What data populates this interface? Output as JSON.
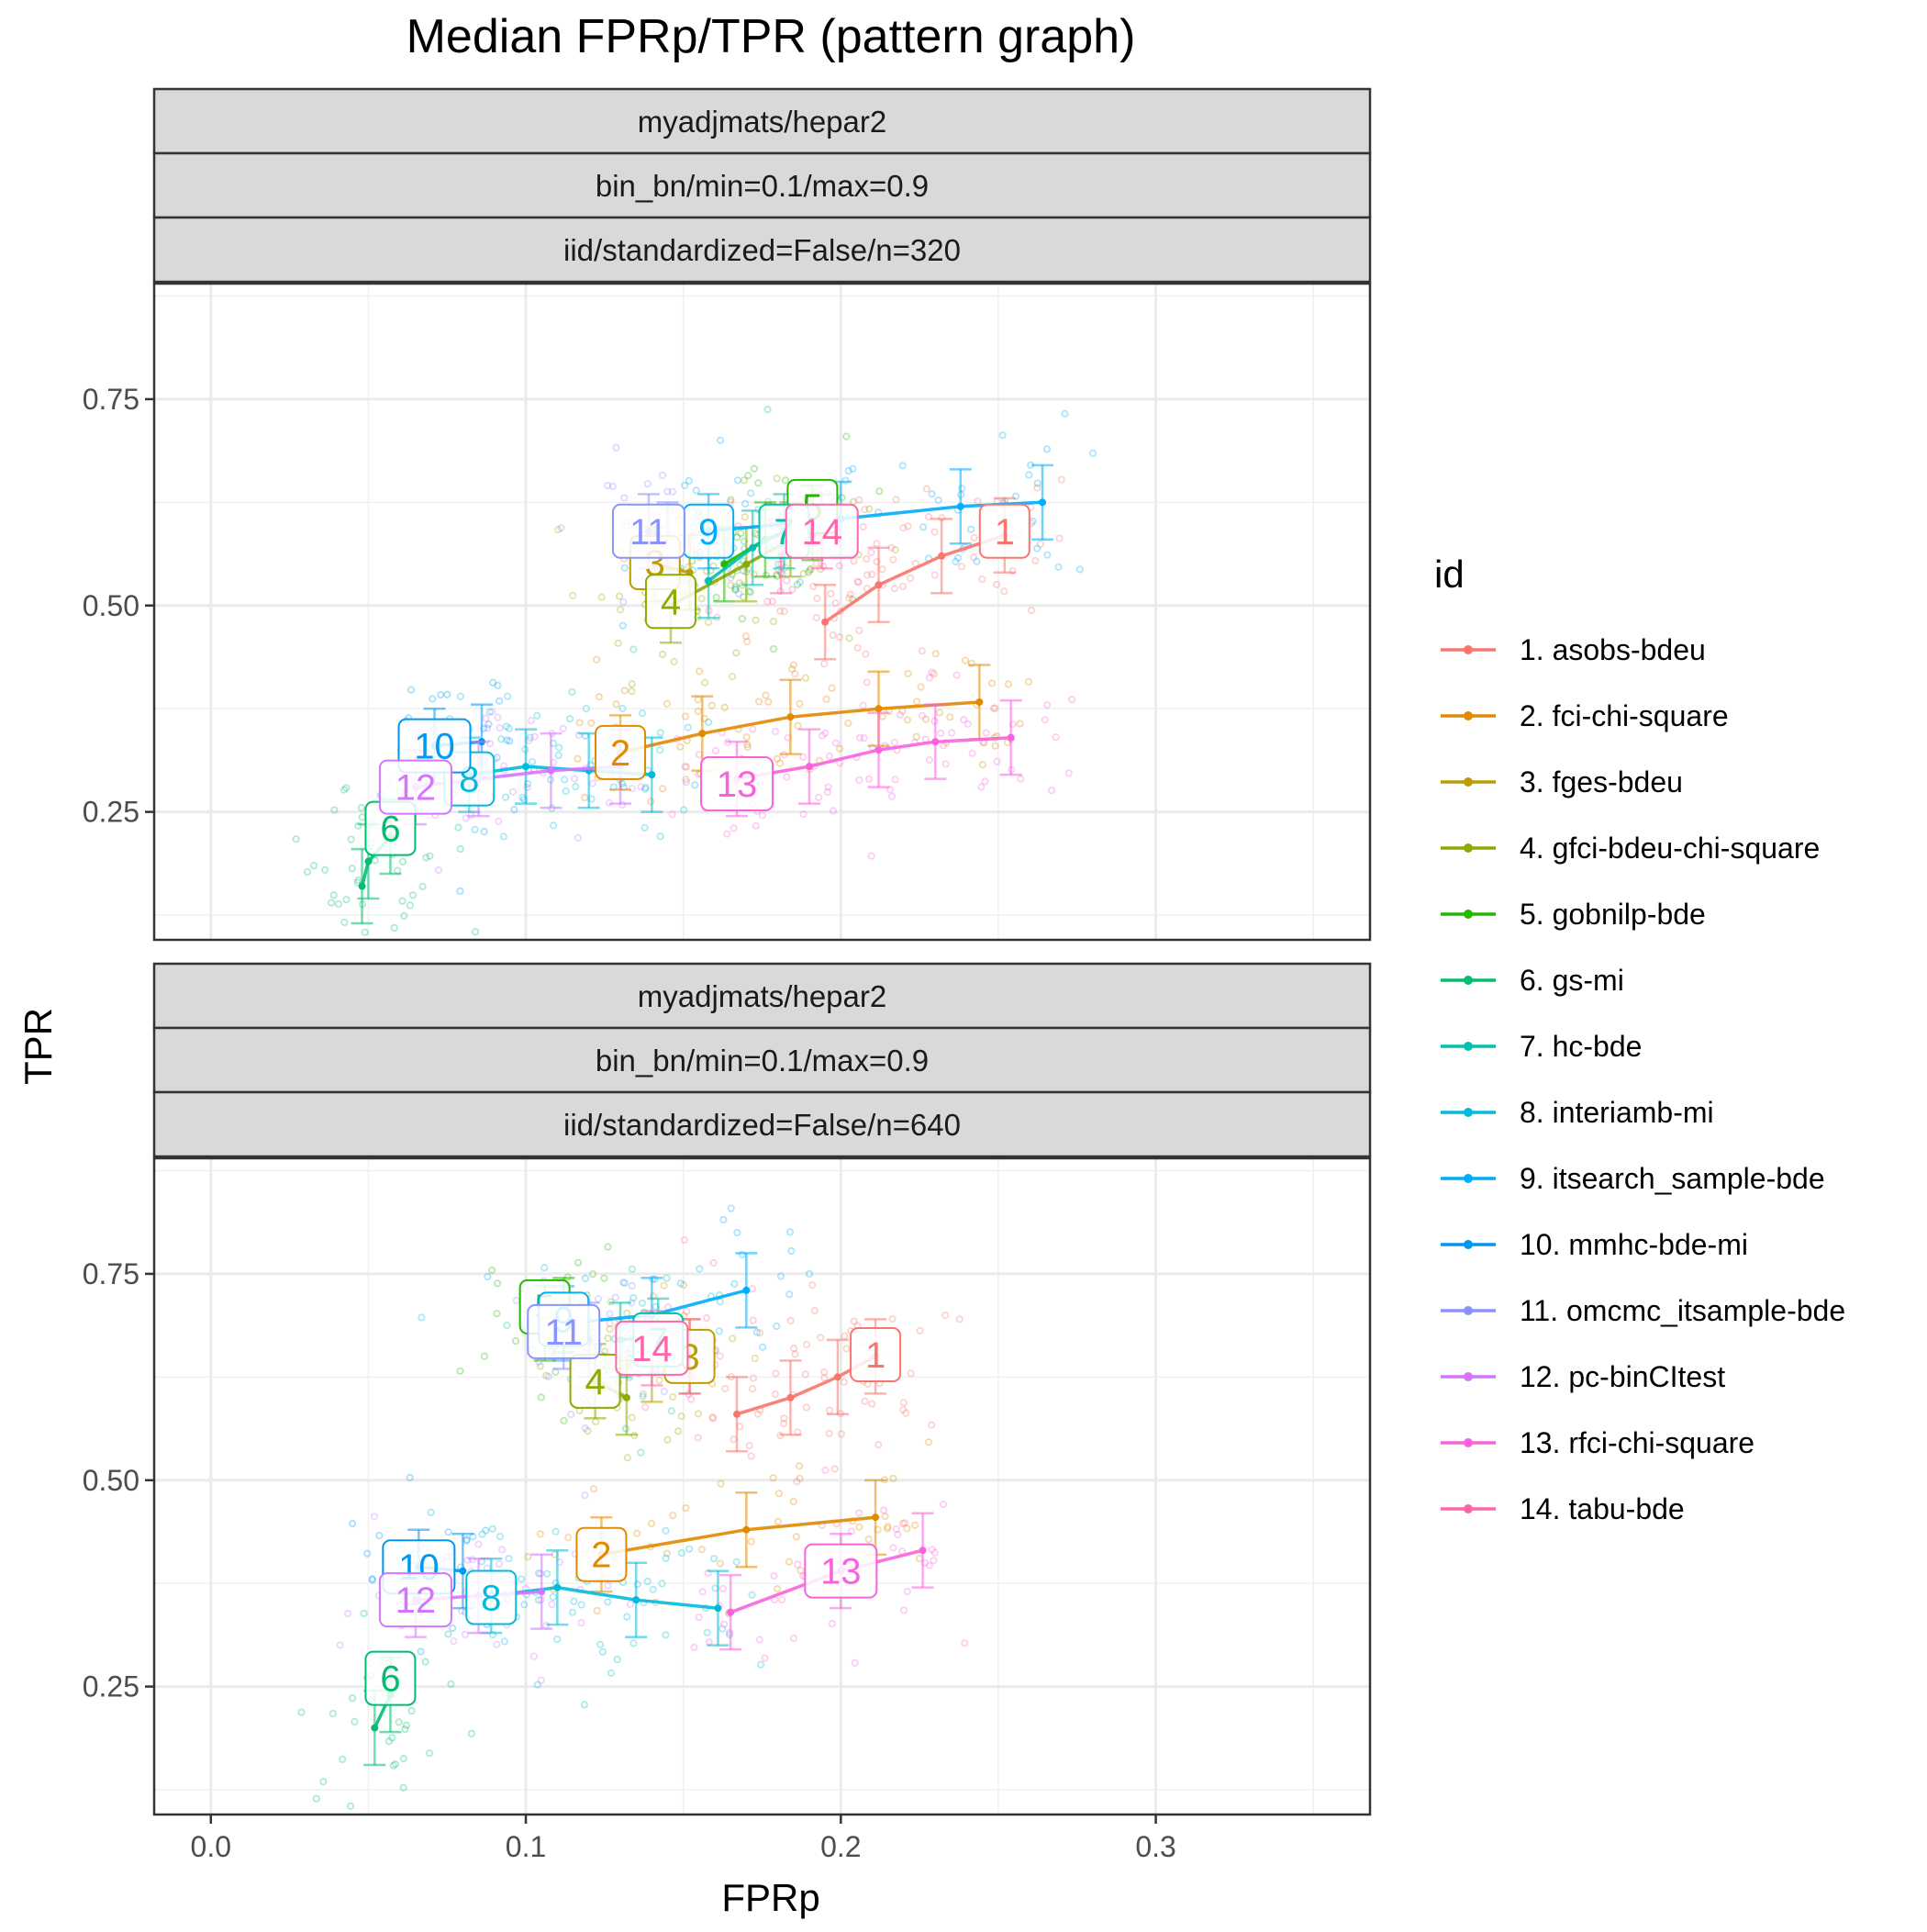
{
  "chart_data": {
    "type": "scatter",
    "title": "Median FPRp/TPR (pattern graph)",
    "xlabel": "FPRp",
    "ylabel": "TPR",
    "xlim": [
      -0.018,
      0.368
    ],
    "ylim": [
      0.095,
      0.89
    ],
    "x_ticks": [
      0.0,
      0.1,
      0.2,
      0.3
    ],
    "x_tick_labels": [
      "0.0",
      "0.1",
      "0.2",
      "0.3"
    ],
    "y_ticks": [
      0.25,
      0.5,
      0.75
    ],
    "y_tick_labels": [
      "0.25",
      "0.50",
      "0.75"
    ],
    "grid": true,
    "legend": {
      "title": "id",
      "position": "right",
      "entries": [
        {
          "id": 1,
          "label": "1. asobs-bdeu",
          "color": "#F8766D"
        },
        {
          "id": 2,
          "label": "2. fci-chi-square",
          "color": "#E18A00"
        },
        {
          "id": 3,
          "label": "3. fges-bdeu",
          "color": "#BE9C00"
        },
        {
          "id": 4,
          "label": "4. gfci-bdeu-chi-square",
          "color": "#8CAB00"
        },
        {
          "id": 5,
          "label": "5. gobnilp-bde",
          "color": "#24B700"
        },
        {
          "id": 6,
          "label": "6. gs-mi",
          "color": "#00BE70"
        },
        {
          "id": 7,
          "label": "7. hc-bde",
          "color": "#00C1AB"
        },
        {
          "id": 8,
          "label": "8. interiamb-mi",
          "color": "#00BBDA"
        },
        {
          "id": 9,
          "label": "9. itsearch_sample-bde",
          "color": "#00ACFC"
        },
        {
          "id": 10,
          "label": "10. mmhc-bde-mi",
          "color": "#0098F2"
        },
        {
          "id": 11,
          "label": "11. omcmc_itsample-bde",
          "color": "#8B93FF"
        },
        {
          "id": 12,
          "label": "12. pc-binCItest",
          "color": "#D575FE"
        },
        {
          "id": 13,
          "label": "13. rfci-chi-square",
          "color": "#F962DD"
        },
        {
          "id": 14,
          "label": "14. tabu-bde",
          "color": "#FF65AC"
        }
      ]
    },
    "panels": [
      {
        "strips": [
          "myadjmats/hepar2",
          "bin_bn/min=0.1/max=0.9",
          "iid/standardized=False/n=320"
        ],
        "series": [
          {
            "id": 1,
            "label_at": [
              0.252,
              0.59
            ],
            "points": [
              [
                0.195,
                0.48
              ],
              [
                0.212,
                0.525
              ],
              [
                0.232,
                0.56
              ],
              [
                0.252,
                0.585
              ]
            ]
          },
          {
            "id": 2,
            "label_at": [
              0.13,
              0.322
            ],
            "points": [
              [
                0.13,
                0.322
              ],
              [
                0.156,
                0.345
              ],
              [
                0.184,
                0.365
              ],
              [
                0.212,
                0.375
              ],
              [
                0.244,
                0.383
              ]
            ]
          },
          {
            "id": 3,
            "label_at": [
              0.141,
              0.552
            ],
            "points": [
              [
                0.141,
                0.55
              ],
              [
                0.152,
                0.54
              ]
            ]
          },
          {
            "id": 4,
            "label_at": [
              0.146,
              0.505
            ],
            "points": [
              [
                0.146,
                0.5
              ],
              [
                0.17,
                0.55
              ],
              [
                0.184,
                0.58
              ]
            ]
          },
          {
            "id": 5,
            "label_at": [
              0.191,
              0.62
            ],
            "points": [
              [
                0.163,
                0.55
              ],
              [
                0.176,
                0.58
              ],
              [
                0.191,
                0.6
              ]
            ]
          },
          {
            "id": 6,
            "label_at": [
              0.057,
              0.23
            ],
            "points": [
              [
                0.048,
                0.16
              ],
              [
                0.05,
                0.19
              ],
              [
                0.057,
                0.22
              ]
            ]
          },
          {
            "id": 7,
            "label_at": [
              0.182,
              0.59
            ],
            "points": [
              [
                0.158,
                0.53
              ],
              [
                0.172,
                0.57
              ],
              [
                0.182,
                0.59
              ]
            ]
          },
          {
            "id": 8,
            "label_at": [
              0.082,
              0.29
            ],
            "points": [
              [
                0.082,
                0.295
              ],
              [
                0.1,
                0.305
              ],
              [
                0.12,
                0.3
              ],
              [
                0.14,
                0.295
              ]
            ]
          },
          {
            "id": 9,
            "label_at": [
              0.158,
              0.59
            ],
            "points": [
              [
                0.158,
                0.59
              ],
              [
                0.2,
                0.605
              ],
              [
                0.238,
                0.62
              ],
              [
                0.264,
                0.625
              ]
            ]
          },
          {
            "id": 10,
            "label_at": [
              0.071,
              0.33
            ],
            "points": [
              [
                0.071,
                0.33
              ],
              [
                0.086,
                0.335
              ]
            ]
          },
          {
            "id": 11,
            "label_at": [
              0.139,
              0.59
            ],
            "points": [
              [
                0.139,
                0.59
              ],
              [
                0.145,
                0.58
              ]
            ]
          },
          {
            "id": 12,
            "label_at": [
              0.065,
              0.28
            ],
            "points": [
              [
                0.065,
                0.28
              ],
              [
                0.085,
                0.29
              ],
              [
                0.108,
                0.3
              ],
              [
                0.13,
                0.305
              ]
            ]
          },
          {
            "id": 13,
            "label_at": [
              0.167,
              0.284
            ],
            "points": [
              [
                0.167,
                0.29
              ],
              [
                0.19,
                0.305
              ],
              [
                0.212,
                0.325
              ],
              [
                0.23,
                0.335
              ],
              [
                0.254,
                0.34
              ]
            ]
          },
          {
            "id": 14,
            "label_at": [
              0.194,
              0.59
            ],
            "points": [
              [
                0.181,
                0.56
              ],
              [
                0.194,
                0.59
              ]
            ]
          }
        ]
      },
      {
        "strips": [
          "myadjmats/hepar2",
          "bin_bn/min=0.1/max=0.9",
          "iid/standardized=False/n=640"
        ],
        "series": [
          {
            "id": 1,
            "label_at": [
              0.211,
              0.652
            ],
            "points": [
              [
                0.167,
                0.58
              ],
              [
                0.184,
                0.6
              ],
              [
                0.199,
                0.625
              ],
              [
                0.211,
                0.65
              ]
            ]
          },
          {
            "id": 2,
            "label_at": [
              0.124,
              0.41
            ],
            "points": [
              [
                0.124,
                0.41
              ],
              [
                0.17,
                0.44
              ],
              [
                0.211,
                0.455
              ]
            ]
          },
          {
            "id": 3,
            "label_at": [
              0.152,
              0.65
            ],
            "points": [
              [
                0.14,
                0.64
              ],
              [
                0.152,
                0.65
              ]
            ]
          },
          {
            "id": 4,
            "label_at": [
              0.122,
              0.62
            ],
            "points": [
              [
                0.122,
                0.62
              ],
              [
                0.132,
                0.6
              ]
            ]
          },
          {
            "id": 5,
            "label_at": [
              0.106,
              0.71
            ],
            "points": [
              [
                0.106,
                0.69
              ],
              [
                0.112,
                0.7
              ]
            ]
          },
          {
            "id": 6,
            "label_at": [
              0.057,
              0.26
            ],
            "points": [
              [
                0.052,
                0.2
              ],
              [
                0.057,
                0.24
              ]
            ]
          },
          {
            "id": 7,
            "label_at": [
              0.142,
              0.67
            ],
            "points": [
              [
                0.13,
                0.67
              ],
              [
                0.142,
                0.675
              ]
            ]
          },
          {
            "id": 8,
            "label_at": [
              0.089,
              0.358
            ],
            "points": [
              [
                0.089,
                0.36
              ],
              [
                0.11,
                0.37
              ],
              [
                0.135,
                0.355
              ],
              [
                0.161,
                0.345
              ]
            ]
          },
          {
            "id": 9,
            "label_at": [
              0.112,
              0.695
            ],
            "points": [
              [
                0.112,
                0.69
              ],
              [
                0.14,
                0.7
              ],
              [
                0.17,
                0.73
              ]
            ]
          },
          {
            "id": 10,
            "label_at": [
              0.066,
              0.395
            ],
            "points": [
              [
                0.066,
                0.395
              ],
              [
                0.08,
                0.39
              ]
            ]
          },
          {
            "id": 11,
            "label_at": [
              0.112,
              0.68
            ],
            "points": [
              [
                0.112,
                0.68
              ],
              [
                0.12,
                0.67
              ]
            ]
          },
          {
            "id": 12,
            "label_at": [
              0.065,
              0.355
            ],
            "points": [
              [
                0.065,
                0.355
              ],
              [
                0.085,
                0.36
              ],
              [
                0.105,
                0.365
              ]
            ]
          },
          {
            "id": 13,
            "label_at": [
              0.2,
              0.39
            ],
            "points": [
              [
                0.165,
                0.34
              ],
              [
                0.2,
                0.39
              ],
              [
                0.226,
                0.415
              ]
            ]
          },
          {
            "id": 14,
            "label_at": [
              0.14,
              0.66
            ],
            "points": [
              [
                0.14,
                0.66
              ],
              [
                0.152,
                0.65
              ]
            ]
          }
        ]
      }
    ]
  }
}
